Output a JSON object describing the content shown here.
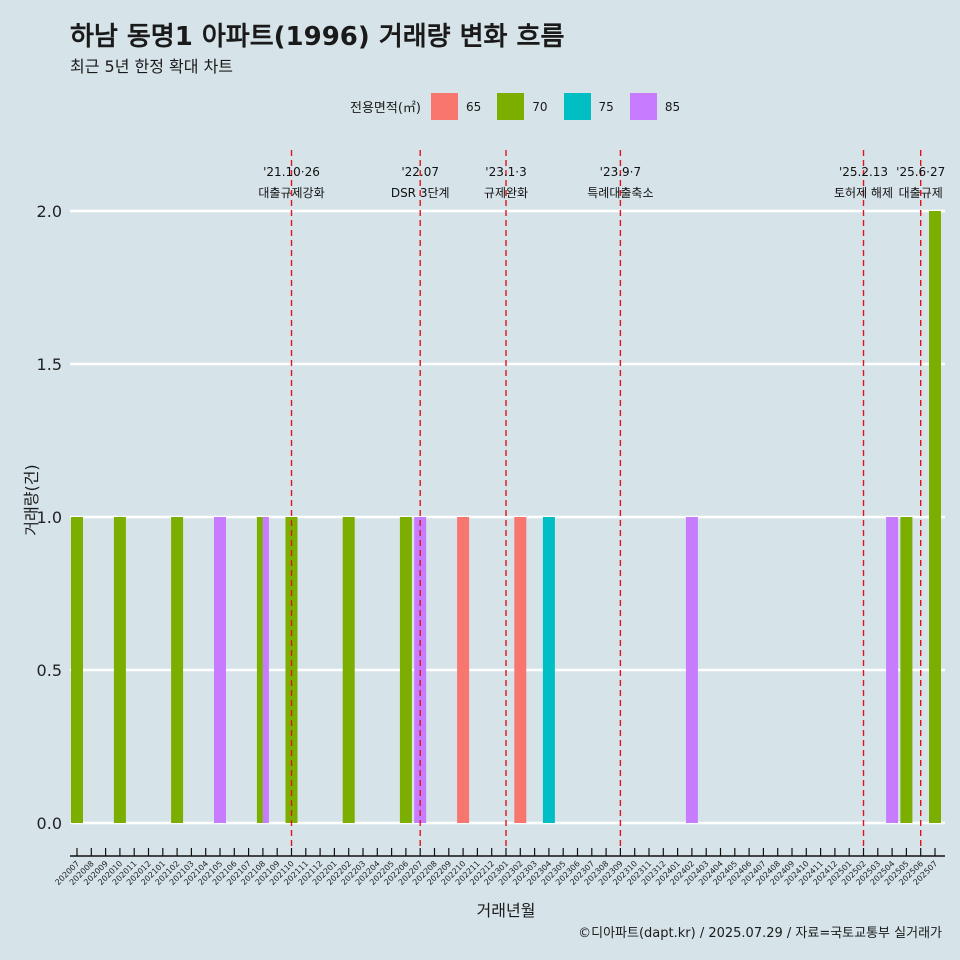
{
  "title": "하남 동명1 아파트(1996) 거래량 변화 흐름",
  "subtitle": "최근 5년 한정 확대 차트",
  "caption": "©디아파트(dapt.kr) / 2025.07.29 / 자료=국토교통부 실거래가",
  "legend": {
    "title": "전용면적(㎡)",
    "items": [
      {
        "label": "65",
        "color": "#f8766d"
      },
      {
        "label": "70",
        "color": "#7cae00"
      },
      {
        "label": "75",
        "color": "#00bfc4"
      },
      {
        "label": "85",
        "color": "#c77cff"
      }
    ]
  },
  "chart_data": {
    "type": "bar",
    "xlabel": "거래년월",
    "ylabel": "거래량(건)",
    "ylim": [
      0,
      2
    ],
    "yticks": [
      "0.0",
      "0.5",
      "1.0",
      "1.5",
      "2.0"
    ],
    "grid": true,
    "legend_position": "top",
    "categories": [
      "202007",
      "202008",
      "202009",
      "202010",
      "202011",
      "202012",
      "202101",
      "202102",
      "202103",
      "202104",
      "202105",
      "202106",
      "202107",
      "202108",
      "202109",
      "202110",
      "202111",
      "202112",
      "202201",
      "202202",
      "202203",
      "202204",
      "202205",
      "202206",
      "202207",
      "202208",
      "202209",
      "202210",
      "202211",
      "202212",
      "202301",
      "202302",
      "202303",
      "202304",
      "202305",
      "202306",
      "202307",
      "202308",
      "202309",
      "202310",
      "202311",
      "202312",
      "202401",
      "202402",
      "202403",
      "202404",
      "202405",
      "202406",
      "202407",
      "202408",
      "202409",
      "202410",
      "202411",
      "202412",
      "202501",
      "202502",
      "202503",
      "202504",
      "202505",
      "202506",
      "202507"
    ],
    "bars": [
      {
        "month": "202007",
        "area": "70",
        "value": 1
      },
      {
        "month": "202010",
        "area": "70",
        "value": 1
      },
      {
        "month": "202102",
        "area": "70",
        "value": 1
      },
      {
        "month": "202105",
        "area": "85",
        "value": 1
      },
      {
        "month": "202108",
        "area": "70",
        "value": 1
      },
      {
        "month": "202108",
        "area": "85",
        "value": 1
      },
      {
        "month": "202110",
        "area": "70",
        "value": 1
      },
      {
        "month": "202202",
        "area": "70",
        "value": 1
      },
      {
        "month": "202206",
        "area": "70",
        "value": 1
      },
      {
        "month": "202207",
        "area": "85",
        "value": 1
      },
      {
        "month": "202210",
        "area": "65",
        "value": 1
      },
      {
        "month": "202302",
        "area": "65",
        "value": 1
      },
      {
        "month": "202304",
        "area": "75",
        "value": 1
      },
      {
        "month": "202402",
        "area": "85",
        "value": 1
      },
      {
        "month": "202504",
        "area": "85",
        "value": 1
      },
      {
        "month": "202505",
        "area": "70",
        "value": 1
      },
      {
        "month": "202507",
        "area": "70",
        "value": 2
      }
    ],
    "annotations": [
      {
        "month": "202110",
        "date": "'21.10·26",
        "text": "대출규제강화"
      },
      {
        "month": "202207",
        "date": "'22.07",
        "text": "DSR 3단계"
      },
      {
        "month": "202301",
        "date": "'23.1·3",
        "text": "규제완화"
      },
      {
        "month": "202309",
        "date": "'23.9·7",
        "text": "특례대출축소"
      },
      {
        "month": "202502",
        "date": "'25.2.13",
        "text": "토허제 해제"
      },
      {
        "month": "202506",
        "date": "'25.6·27",
        "text": "대출규제"
      }
    ]
  }
}
